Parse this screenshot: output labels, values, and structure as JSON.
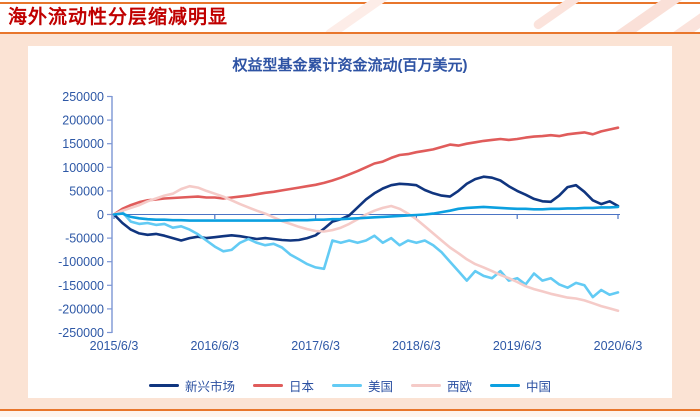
{
  "page": {
    "header_title": "海外流动性分层缩减明显",
    "accent_orange": "#E8762C",
    "header_red": "#C00000",
    "body_bg": "#FBE3D4"
  },
  "chart_data": {
    "type": "line",
    "title": "权益型基金累计资金流动(百万美元)",
    "grid": "zero-baseline only",
    "legend_position": "bottom",
    "x_axis": {
      "tick_labels": [
        "2015/6/3",
        "2016/6/3",
        "2017/6/3",
        "2018/6/3",
        "2019/6/3",
        "2020/6/3"
      ],
      "unit": "month",
      "months_per_tick": 12
    },
    "y_axis": {
      "ticks": [
        250000,
        200000,
        150000,
        100000,
        50000,
        0,
        -50000,
        -100000,
        -150000,
        -200000,
        -250000
      ],
      "ylim": [
        -250000,
        250000
      ]
    },
    "series": [
      {
        "name": "新兴市场",
        "color": "#10357F",
        "values": [
          0,
          -18000,
          -32000,
          -40000,
          -43000,
          -41000,
          -45000,
          -50000,
          -55000,
          -50000,
          -47000,
          -50000,
          -48000,
          -46000,
          -44000,
          -46000,
          -49000,
          -52000,
          -50000,
          -52000,
          -54000,
          -55000,
          -54000,
          -50000,
          -44000,
          -30000,
          -15000,
          -10000,
          -2000,
          15000,
          32000,
          45000,
          55000,
          62000,
          65000,
          64000,
          62000,
          52000,
          45000,
          40000,
          38000,
          50000,
          65000,
          75000,
          80000,
          78000,
          72000,
          60000,
          50000,
          42000,
          33000,
          28000,
          27000,
          40000,
          58000,
          62000,
          48000,
          30000,
          22000,
          28000,
          18000
        ]
      },
      {
        "name": "日本",
        "color": "#E05C5B",
        "values": [
          0,
          12000,
          20000,
          26000,
          30000,
          32000,
          34000,
          35000,
          36000,
          37000,
          38000,
          36000,
          36000,
          34000,
          36000,
          38000,
          40000,
          43000,
          46000,
          48000,
          51000,
          54000,
          57000,
          60000,
          63000,
          67000,
          72000,
          78000,
          85000,
          92000,
          100000,
          108000,
          112000,
          120000,
          126000,
          128000,
          132000,
          135000,
          138000,
          143000,
          148000,
          146000,
          150000,
          153000,
          156000,
          158000,
          160000,
          158000,
          160000,
          163000,
          165000,
          166000,
          168000,
          166000,
          170000,
          172000,
          174000,
          170000,
          176000,
          180000,
          184000
        ]
      },
      {
        "name": "美国",
        "color": "#63CBF4",
        "values": [
          0,
          5000,
          -15000,
          -20000,
          -18000,
          -22000,
          -20000,
          -28000,
          -25000,
          -32000,
          -42000,
          -55000,
          -68000,
          -78000,
          -75000,
          -60000,
          -52000,
          -60000,
          -65000,
          -62000,
          -70000,
          -85000,
          -95000,
          -105000,
          -112000,
          -115000,
          -55000,
          -60000,
          -55000,
          -60000,
          -55000,
          -45000,
          -60000,
          -50000,
          -65000,
          -55000,
          -60000,
          -55000,
          -65000,
          -80000,
          -100000,
          -120000,
          -140000,
          -120000,
          -130000,
          -135000,
          -120000,
          -140000,
          -135000,
          -148000,
          -125000,
          -140000,
          -135000,
          -148000,
          -155000,
          -145000,
          -150000,
          -175000,
          -160000,
          -170000,
          -165000
        ]
      },
      {
        "name": "西欧",
        "color": "#F5CBC8",
        "values": [
          0,
          8000,
          14000,
          20000,
          28000,
          34000,
          40000,
          44000,
          54000,
          60000,
          57000,
          50000,
          44000,
          38000,
          30000,
          22000,
          15000,
          8000,
          2000,
          -6000,
          -14000,
          -20000,
          -26000,
          -31000,
          -35000,
          -36000,
          -33000,
          -28000,
          -20000,
          -10000,
          0,
          8000,
          14000,
          18000,
          12000,
          2000,
          -10000,
          -25000,
          -40000,
          -55000,
          -70000,
          -82000,
          -95000,
          -105000,
          -112000,
          -120000,
          -128000,
          -135000,
          -143000,
          -152000,
          -158000,
          -163000,
          -168000,
          -172000,
          -176000,
          -178000,
          -182000,
          -188000,
          -194000,
          -199000,
          -204000
        ]
      },
      {
        "name": "中国",
        "color": "#0CA0E0",
        "values": [
          0,
          2000,
          -5000,
          -8000,
          -10000,
          -11000,
          -11000,
          -12000,
          -12000,
          -13000,
          -13000,
          -13000,
          -13000,
          -13000,
          -13000,
          -13000,
          -13000,
          -13000,
          -13000,
          -13000,
          -13000,
          -12000,
          -12000,
          -12000,
          -11000,
          -11000,
          -10000,
          -10000,
          -9000,
          -8000,
          -7000,
          -6000,
          -5000,
          -4000,
          -3000,
          -2000,
          -1000,
          0,
          2000,
          5000,
          8000,
          12000,
          14000,
          15000,
          16000,
          15000,
          14000,
          13000,
          12000,
          12000,
          11000,
          11000,
          12000,
          12000,
          13000,
          13000,
          14000,
          14000,
          15000,
          15000,
          16000
        ]
      }
    ]
  }
}
